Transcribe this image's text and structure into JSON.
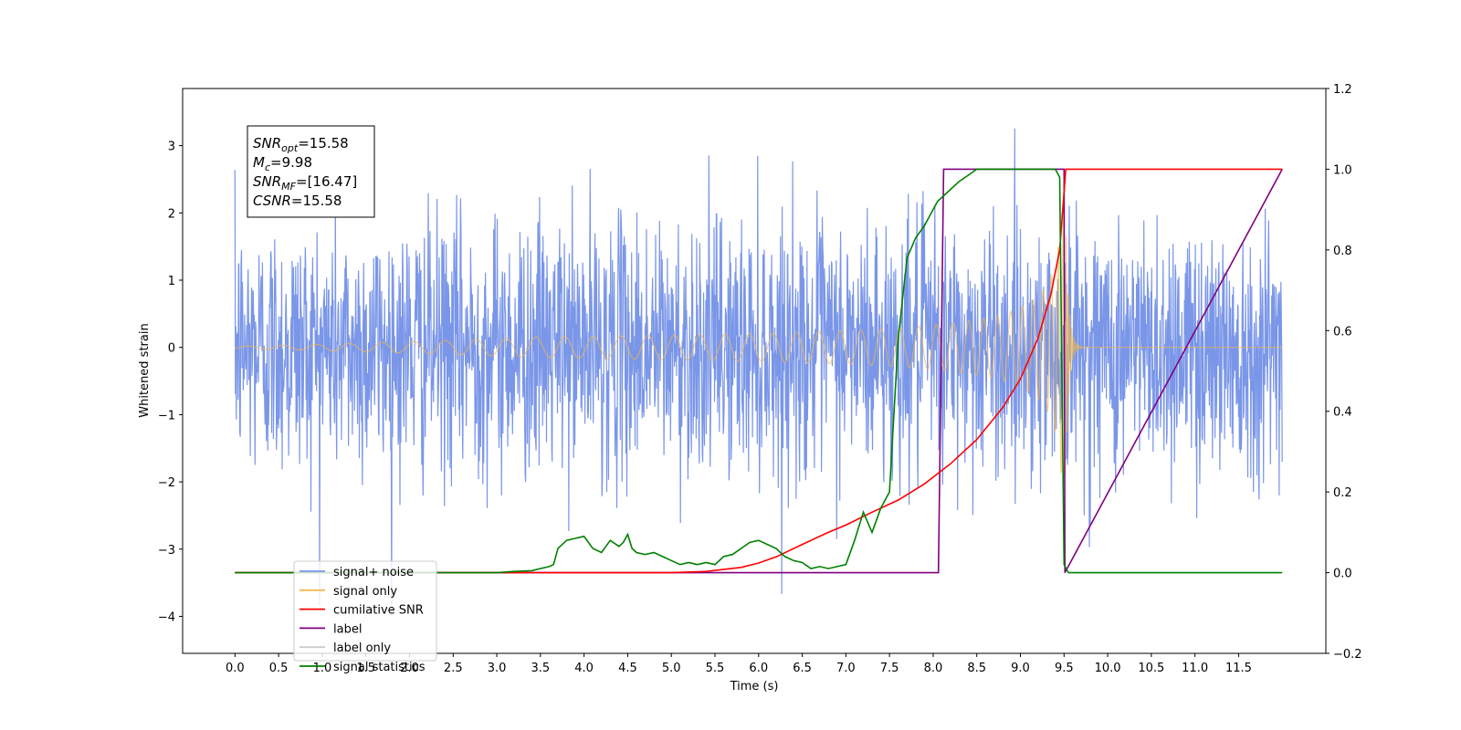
{
  "chart_data": {
    "type": "line",
    "xlabel": "Time (s)",
    "ylabel_left": "Whitened strain",
    "ylabel_right": "",
    "xlim": [
      -0.6,
      12.5
    ],
    "ylim_left": [
      -4.55,
      3.85
    ],
    "ylim_right": [
      -0.2,
      1.2
    ],
    "x_ticks": [
      "0.0",
      "0.5",
      "1.0",
      "1.5",
      "2.0",
      "2.5",
      "3.0",
      "3.5",
      "4.0",
      "4.5",
      "5.0",
      "5.5",
      "6.0",
      "6.5",
      "7.0",
      "7.5",
      "8.0",
      "8.5",
      "9.0",
      "9.5",
      "10.0",
      "10.5",
      "11.0",
      "11.5"
    ],
    "y_ticks_left": [
      "3",
      "2",
      "1",
      "0",
      "−1",
      "−2",
      "−3",
      "−4"
    ],
    "y_ticks_right": [
      "1.2",
      "1.0",
      "0.8",
      "0.6",
      "0.4",
      "0.2",
      "0.0",
      "−0.2"
    ],
    "grid": false,
    "legend_position": "lower-left",
    "annotation": {
      "lines": [
        {
          "base": "SNR",
          "sub": "opt",
          "value": "=15.58"
        },
        {
          "base": "M",
          "sub": "c",
          "value": "=9.98"
        },
        {
          "base": "SNR",
          "sub": "MF",
          "value": "=[16.47]"
        },
        {
          "base": "CSNR",
          "sub": "",
          "value": "=15.58"
        }
      ]
    },
    "series": [
      {
        "name": "signal+ noise",
        "axis": "left",
        "color": "#7a96e8",
        "description": "whitened noise, envelope about ±2.3 with spikes to ±3.5",
        "x_range": [
          0.0,
          12.0
        ],
        "envelope": 2.3,
        "max_peak": 3.5
      },
      {
        "name": "signal only",
        "axis": "left",
        "color": "#f2b94e",
        "description": "chirp growing in amplitude, peak about ±2.0 at t≈9.5, then ring-down",
        "x_range": [
          0.0,
          12.0
        ],
        "merger_time": 9.52,
        "peak_amplitude": 2.0
      },
      {
        "name": "cumilative SNR",
        "axis": "right",
        "color": "#ff0000",
        "x": [
          0.0,
          5.0,
          5.4,
          5.8,
          6.0,
          6.2,
          6.5,
          6.8,
          7.0,
          7.3,
          7.6,
          7.9,
          8.2,
          8.5,
          8.8,
          9.0,
          9.2,
          9.35,
          9.45,
          9.52,
          12.0
        ],
        "y": [
          0.0,
          0.0,
          0.003,
          0.013,
          0.024,
          0.039,
          0.07,
          0.1,
          0.118,
          0.15,
          0.18,
          0.22,
          0.27,
          0.33,
          0.41,
          0.48,
          0.58,
          0.69,
          0.8,
          1.0,
          1.0
        ]
      },
      {
        "name": "label",
        "axis": "right",
        "color": "#800080",
        "x": [
          0.0,
          8.06,
          8.12,
          9.5,
          9.51,
          12.0
        ],
        "y": [
          0.0,
          0.0,
          1.0,
          1.0,
          0.0,
          1.0
        ]
      },
      {
        "name": "label only",
        "axis": "right",
        "color": "#cccccc",
        "x": [],
        "y": []
      },
      {
        "name": "signal statistics",
        "axis": "right",
        "color": "#008000",
        "x": [
          0.0,
          3.0,
          3.2,
          3.4,
          3.5,
          3.6,
          3.65,
          3.7,
          3.8,
          3.9,
          4.0,
          4.1,
          4.2,
          4.3,
          4.4,
          4.45,
          4.5,
          4.55,
          4.6,
          4.7,
          4.8,
          4.9,
          5.0,
          5.1,
          5.2,
          5.3,
          5.4,
          5.5,
          5.6,
          5.7,
          5.8,
          5.9,
          6.0,
          6.1,
          6.2,
          6.3,
          6.4,
          6.5,
          6.6,
          6.7,
          6.8,
          6.9,
          7.0,
          7.1,
          7.2,
          7.3,
          7.4,
          7.5,
          7.6,
          7.7,
          7.8,
          7.9,
          8.0,
          8.05,
          8.1,
          8.2,
          8.3,
          8.4,
          8.5,
          8.6,
          9.0,
          9.4,
          9.45,
          9.5,
          9.55,
          9.6,
          12.0
        ],
        "y": [
          0.0,
          0.0,
          0.003,
          0.005,
          0.01,
          0.015,
          0.02,
          0.06,
          0.08,
          0.085,
          0.09,
          0.06,
          0.05,
          0.08,
          0.065,
          0.075,
          0.095,
          0.06,
          0.05,
          0.045,
          0.05,
          0.04,
          0.03,
          0.02,
          0.025,
          0.02,
          0.025,
          0.02,
          0.04,
          0.045,
          0.06,
          0.075,
          0.08,
          0.07,
          0.06,
          0.04,
          0.03,
          0.025,
          0.01,
          0.015,
          0.01,
          0.015,
          0.02,
          0.08,
          0.15,
          0.1,
          0.16,
          0.2,
          0.58,
          0.78,
          0.83,
          0.86,
          0.9,
          0.92,
          0.93,
          0.95,
          0.97,
          0.985,
          1.0,
          1.0,
          1.0,
          1.0,
          0.98,
          0.02,
          0.0,
          0.0,
          0.0
        ]
      }
    ]
  }
}
